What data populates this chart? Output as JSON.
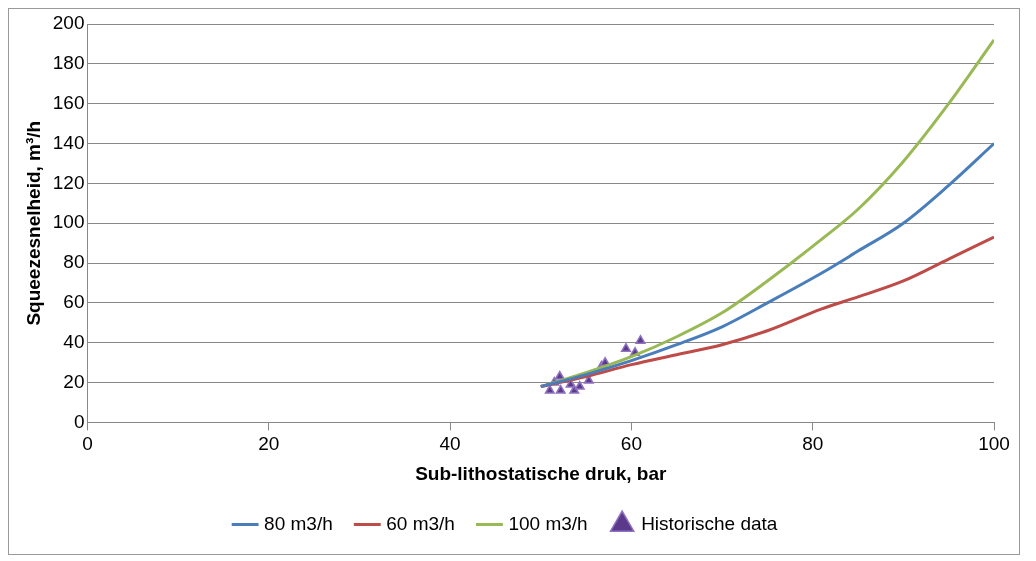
{
  "chart_data": {
    "type": "line",
    "xlabel": "Sub-lithostatische druk, bar",
    "ylabel": "Squeezesnelheid, m³/h",
    "xlim": [
      0,
      100
    ],
    "xticks": [
      0,
      20,
      40,
      60,
      80,
      100
    ],
    "ylim": [
      0,
      200
    ],
    "yticks": [
      0,
      20,
      40,
      60,
      80,
      100,
      120,
      140,
      160,
      180,
      200
    ],
    "grid": "y",
    "legend": "bottom",
    "series": [
      {
        "name": "80 m3/h",
        "color": "#4a7ebb",
        "marker": "none",
        "x": [
          50,
          55,
          60,
          65,
          70,
          75,
          81,
          85,
          90,
          95,
          100
        ],
        "values": [
          18,
          24,
          31,
          39,
          48,
          60,
          75,
          86,
          100,
          119,
          140
        ]
      },
      {
        "name": "60 m3/h",
        "color": "#be4b48",
        "marker": "none",
        "x": [
          50,
          55,
          60,
          65,
          70,
          75,
          81,
          85,
          90,
          95,
          100
        ],
        "values": [
          18,
          23,
          29,
          34,
          39,
          46,
          57,
          63,
          71,
          82,
          93
        ]
      },
      {
        "name": "100 m3/h",
        "color": "#98b954",
        "marker": "none",
        "x": [
          50,
          55,
          60,
          65,
          70,
          75,
          81,
          85,
          90,
          95,
          100
        ],
        "values": [
          18,
          25,
          33,
          43,
          55,
          71,
          92,
          107,
          131,
          160,
          192
        ]
      },
      {
        "name": "Historische data",
        "type": "scatter",
        "color": "#5b3a8c",
        "marker": "triangle",
        "x": [
          51.0,
          51.5,
          52.1,
          52.2,
          53.3,
          53.7,
          54.3,
          55.3,
          56.7,
          57.1,
          59.4,
          60.4,
          61.0
        ],
        "values": [
          16,
          20,
          23,
          16,
          19,
          16,
          18,
          21,
          28,
          30,
          37,
          35,
          41
        ]
      }
    ]
  }
}
